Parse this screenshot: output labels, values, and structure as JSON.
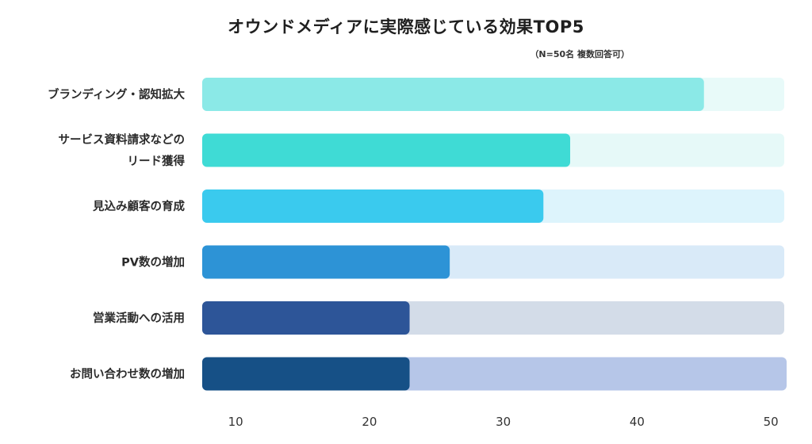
{
  "title": "オウンドメディアに実際感じている効果TOP5",
  "subtitle": "（N=50名 複数回答可）",
  "chart_data": {
    "type": "bar",
    "orientation": "horizontal",
    "title": "オウンドメディアに実際感じている効果TOP5",
    "subtitle": "（N=50名 複数回答可）",
    "categories": [
      [
        "ブランディング・認知拡大"
      ],
      [
        "サービス資料請求などの",
        "リード獲得"
      ],
      [
        "見込み顧客の育成"
      ],
      [
        "PV数の増加"
      ],
      [
        "営業活動への活用"
      ],
      [
        "お問い合わせ数の増加"
      ]
    ],
    "values": [
      45,
      35,
      33,
      26,
      23,
      23
    ],
    "xlim": [
      7.5,
      51
    ],
    "xticks": [
      10,
      20,
      30,
      40,
      50
    ],
    "colors": [
      "#8BE9E7",
      "#3FDBD5",
      "#3ACAEE",
      "#2D93D6",
      "#2D5598",
      "#165086"
    ],
    "track_colors": [
      "#E8FAF9",
      "#E6F9F8",
      "#DDF4FC",
      "#D9EAF8",
      "#D3DCE8",
      "#B6C6E8"
    ]
  }
}
